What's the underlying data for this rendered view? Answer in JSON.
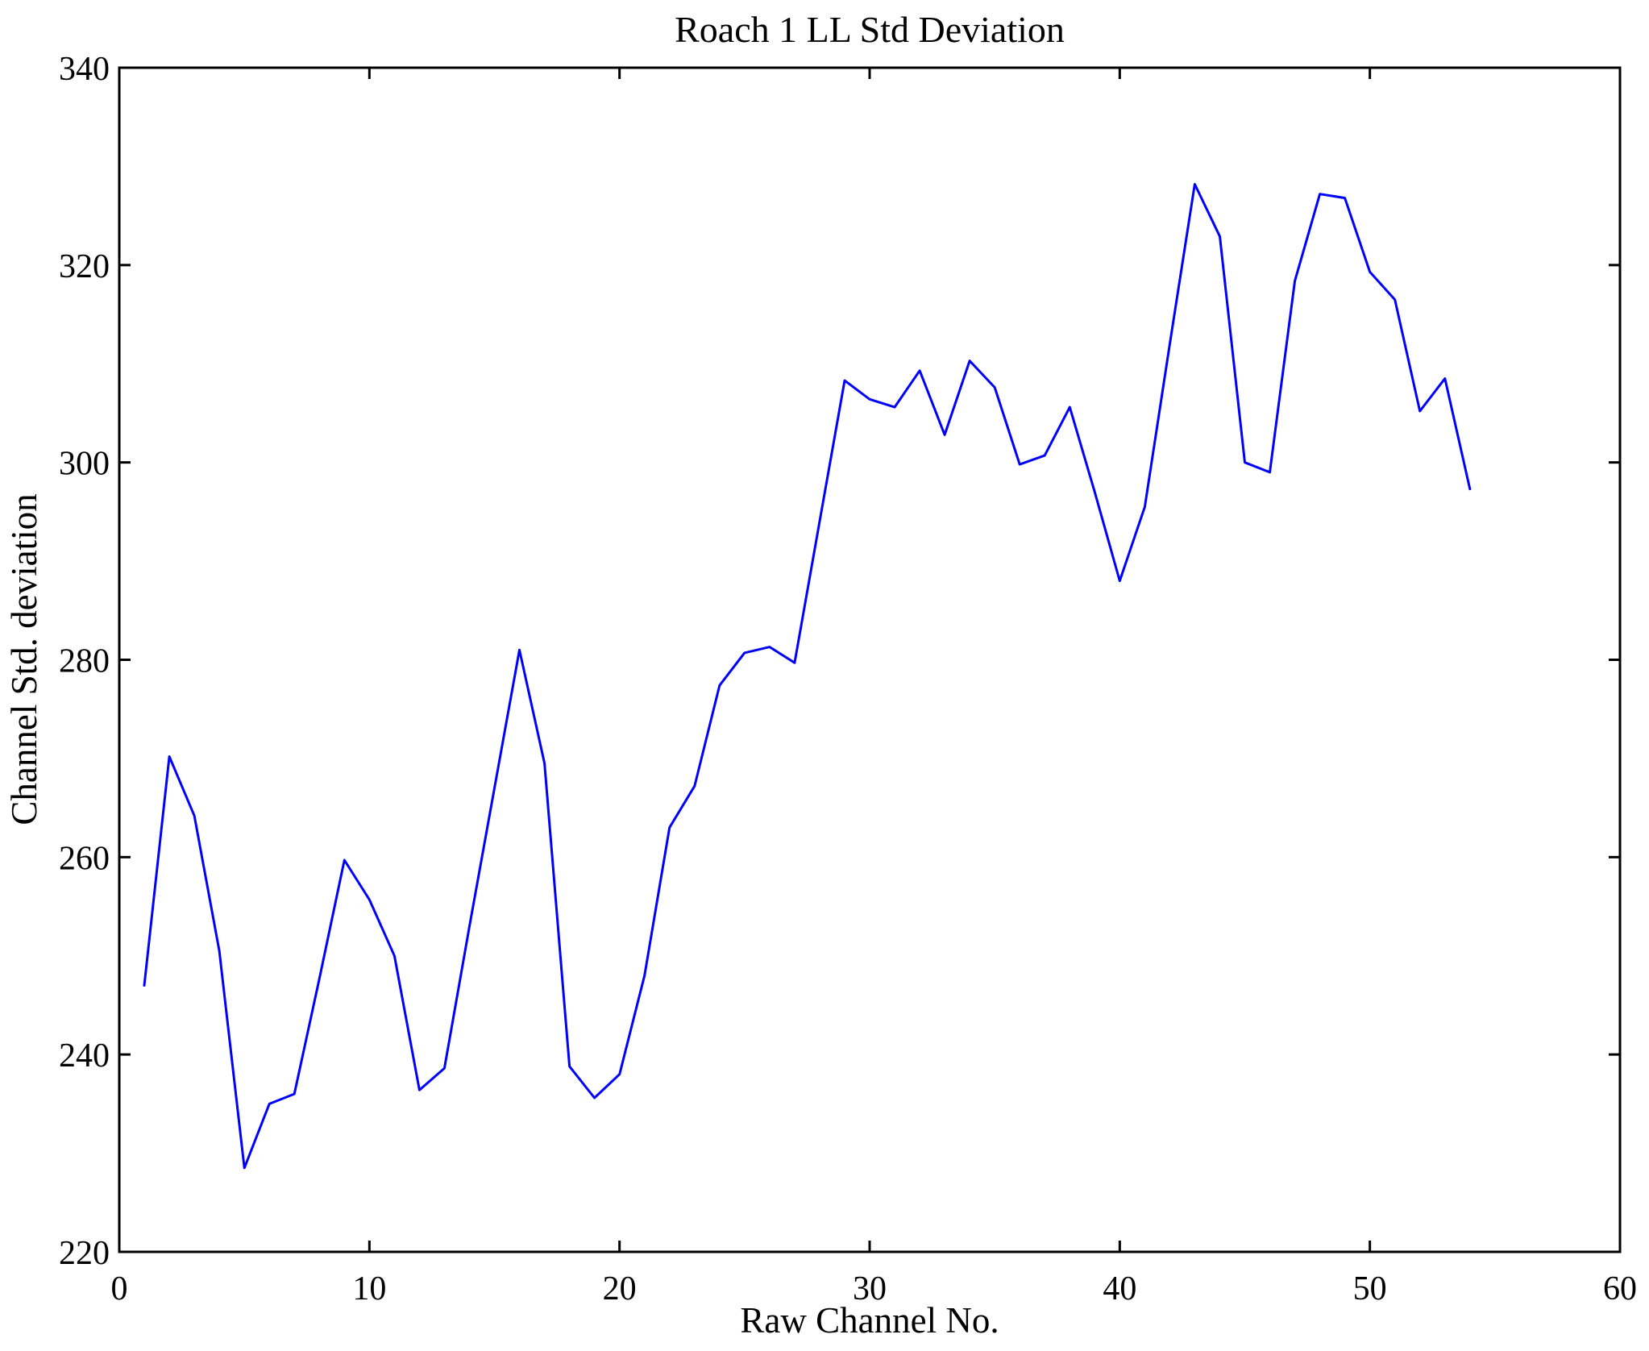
{
  "figure": {
    "title": "Roach 1 LL Std Deviation",
    "xlabel": "Raw Channel No.",
    "ylabel": "Channel Std. deviation",
    "background_color": "#ffffff",
    "axis_color": "#000000",
    "line_color": "#0000ff"
  },
  "chart_data": {
    "type": "line",
    "title": "Roach 1 LL Std Deviation",
    "xlabel": "Raw Channel No.",
    "ylabel": "Channel Std. deviation",
    "xlim": [
      0,
      60
    ],
    "ylim": [
      220,
      340
    ],
    "xticks": [
      0,
      10,
      20,
      30,
      40,
      50,
      60
    ],
    "yticks": [
      220,
      240,
      260,
      280,
      300,
      320,
      340
    ],
    "grid": false,
    "legend": false,
    "line_color": "#0000ff",
    "x": [
      1,
      2,
      3,
      4,
      5,
      6,
      7,
      8,
      9,
      10,
      11,
      12,
      13,
      14,
      15,
      16,
      17,
      18,
      19,
      20,
      21,
      22,
      23,
      24,
      25,
      26,
      27,
      28,
      29,
      30,
      31,
      32,
      33,
      34,
      35,
      36,
      37,
      38,
      39,
      40,
      41,
      42,
      43,
      44,
      45,
      46,
      47,
      48,
      49,
      50,
      51,
      52,
      53,
      54
    ],
    "values": [
      247.0,
      270.2,
      264.2,
      250.5,
      228.5,
      235.0,
      236.0,
      247.7,
      259.7,
      255.7,
      250.0,
      236.4,
      238.6,
      253.0,
      267.0,
      281.0,
      269.5,
      238.8,
      235.6,
      238.0,
      248.0,
      263.0,
      267.2,
      277.4,
      280.7,
      281.3,
      279.7,
      294.0,
      308.3,
      306.4,
      305.6,
      309.3,
      302.8,
      310.3,
      307.6,
      299.8,
      300.7,
      305.6,
      297.0,
      288.0,
      295.5,
      312.0,
      328.2,
      322.9,
      300.0,
      299.0,
      318.4,
      327.2,
      326.8,
      319.3,
      316.5,
      305.2,
      308.5,
      297.3
    ]
  }
}
